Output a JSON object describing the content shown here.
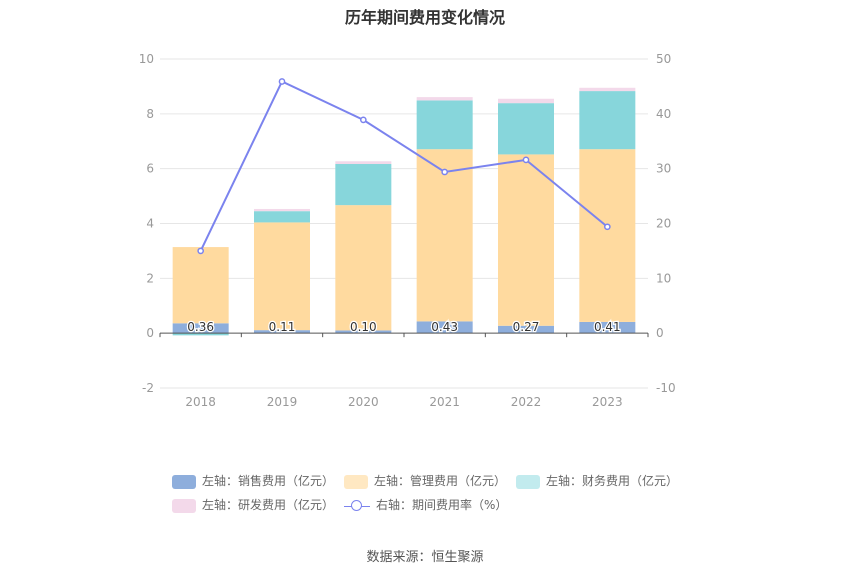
{
  "title": "历年期间费用变化情况",
  "source": "数据来源：恒生聚源",
  "chart_data": {
    "type": "bar",
    "stacked": true,
    "categories": [
      "2018",
      "2019",
      "2020",
      "2021",
      "2022",
      "2023"
    ],
    "left_axis": {
      "ylim": [
        -2,
        10
      ],
      "ticks": [
        "-2",
        "0",
        "2",
        "4",
        "6",
        "8",
        "10"
      ]
    },
    "right_axis": {
      "ylim": [
        -10,
        50
      ],
      "ticks": [
        "-10",
        "0",
        "10",
        "20",
        "30",
        "40",
        "50"
      ]
    },
    "grid": true,
    "legend_position": "bottom",
    "series": [
      {
        "name": "左轴：销售费用（亿元）",
        "axis": "left",
        "color": "#8eaedc",
        "values": [
          0.36,
          0.11,
          0.1,
          0.43,
          0.27,
          0.41
        ],
        "labels": [
          "0.36",
          "0.11",
          "0.10",
          "0.43",
          "0.27",
          "0.41"
        ]
      },
      {
        "name": "左轴：管理费用（亿元）",
        "axis": "left",
        "color": "#ffda9f",
        "values": [
          2.78,
          3.93,
          4.57,
          6.28,
          6.25,
          6.3
        ]
      },
      {
        "name": "左轴：财务费用（亿元）",
        "axis": "left",
        "color": "#87d6db",
        "values": [
          -0.08,
          0.41,
          1.5,
          1.78,
          1.87,
          2.12
        ]
      },
      {
        "name": "左轴：研发费用（亿元）",
        "axis": "left",
        "color": "#f3d9ea",
        "values": [
          0,
          0.08,
          0.1,
          0.12,
          0.16,
          0.12
        ]
      },
      {
        "name": "右轴：期间费用率（%）",
        "axis": "right",
        "type": "line",
        "color": "#7b83ee",
        "values": [
          15.0,
          45.9,
          38.9,
          29.4,
          31.6,
          19.4
        ]
      }
    ]
  }
}
